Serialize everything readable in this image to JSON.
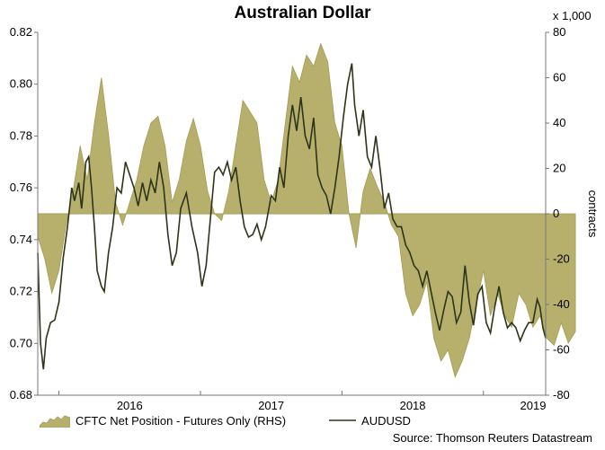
{
  "chart_data": {
    "type": "line",
    "title": "Australian Dollar",
    "source": "Source: Thomson Reuters Datastream",
    "x_tick_labels": [
      "2016",
      "2017",
      "2018",
      "2019"
    ],
    "left_axis": {
      "ticks": [
        "0.68",
        "0.70",
        "0.72",
        "0.74",
        "0.76",
        "0.78",
        "0.80",
        "0.82"
      ],
      "ylim": [
        0.68,
        0.82
      ]
    },
    "right_axis": {
      "label": "contracts",
      "unit_label": "x 1,000",
      "ticks": [
        "-80",
        "-60",
        "-40",
        "-20",
        "0",
        "20",
        "40",
        "60",
        "80"
      ],
      "ylim": [
        -80,
        80
      ]
    },
    "colors": {
      "area_fill": "#b7b06c",
      "area_stroke": "#a39c55",
      "line": "#2d3419",
      "axis": "#777777"
    },
    "series": [
      {
        "name": "CFTC Net Position - Futures Only (RHS)",
        "kind": "area",
        "axis": "right",
        "points": [
          [
            2015.35,
            -10
          ],
          [
            2015.4,
            -20
          ],
          [
            2015.45,
            -35
          ],
          [
            2015.5,
            -25
          ],
          [
            2015.55,
            -5
          ],
          [
            2015.6,
            10
          ],
          [
            2015.65,
            30
          ],
          [
            2015.7,
            15
          ],
          [
            2015.75,
            40
          ],
          [
            2015.8,
            60
          ],
          [
            2015.85,
            35
          ],
          [
            2015.9,
            5
          ],
          [
            2015.95,
            -5
          ],
          [
            2016.0,
            5
          ],
          [
            2016.05,
            15
          ],
          [
            2016.1,
            30
          ],
          [
            2016.15,
            40
          ],
          [
            2016.2,
            43
          ],
          [
            2016.25,
            30
          ],
          [
            2016.3,
            5
          ],
          [
            2016.35,
            15
          ],
          [
            2016.4,
            32
          ],
          [
            2016.45,
            42
          ],
          [
            2016.5,
            30
          ],
          [
            2016.55,
            10
          ],
          [
            2016.6,
            0
          ],
          [
            2016.65,
            -3
          ],
          [
            2016.7,
            10
          ],
          [
            2016.75,
            30
          ],
          [
            2016.8,
            50
          ],
          [
            2016.85,
            45
          ],
          [
            2016.9,
            40
          ],
          [
            2016.95,
            15
          ],
          [
            2017.0,
            5
          ],
          [
            2017.05,
            15
          ],
          [
            2017.1,
            40
          ],
          [
            2017.15,
            65
          ],
          [
            2017.2,
            58
          ],
          [
            2017.25,
            70
          ],
          [
            2017.3,
            65
          ],
          [
            2017.35,
            75
          ],
          [
            2017.4,
            67
          ],
          [
            2017.45,
            40
          ],
          [
            2017.5,
            30
          ],
          [
            2017.55,
            0
          ],
          [
            2017.6,
            -15
          ],
          [
            2017.65,
            10
          ],
          [
            2017.7,
            20
          ],
          [
            2017.75,
            12
          ],
          [
            2017.8,
            5
          ],
          [
            2017.85,
            -5
          ],
          [
            2017.9,
            -10
          ],
          [
            2017.95,
            -35
          ],
          [
            2018.0,
            -45
          ],
          [
            2018.05,
            -40
          ],
          [
            2018.1,
            -30
          ],
          [
            2018.15,
            -55
          ],
          [
            2018.2,
            -65
          ],
          [
            2018.25,
            -60
          ],
          [
            2018.3,
            -72
          ],
          [
            2018.35,
            -65
          ],
          [
            2018.4,
            -55
          ],
          [
            2018.45,
            -40
          ],
          [
            2018.5,
            -25
          ],
          [
            2018.55,
            -45
          ],
          [
            2018.6,
            -35
          ],
          [
            2018.65,
            -45
          ],
          [
            2018.7,
            -50
          ],
          [
            2018.75,
            -35
          ],
          [
            2018.8,
            -40
          ],
          [
            2018.85,
            -50
          ],
          [
            2018.9,
            -45
          ],
          [
            2018.95,
            -55
          ],
          [
            2019.0,
            -58
          ],
          [
            2019.05,
            -48
          ],
          [
            2019.1,
            -57
          ],
          [
            2019.15,
            -52
          ]
        ]
      },
      {
        "name": "AUDUSD",
        "kind": "line",
        "axis": "left",
        "points": [
          [
            2015.35,
            0.735
          ],
          [
            2015.37,
            0.7
          ],
          [
            2015.39,
            0.69
          ],
          [
            2015.41,
            0.702
          ],
          [
            2015.44,
            0.708
          ],
          [
            2015.47,
            0.709
          ],
          [
            2015.5,
            0.716
          ],
          [
            2015.53,
            0.733
          ],
          [
            2015.56,
            0.745
          ],
          [
            2015.59,
            0.76
          ],
          [
            2015.61,
            0.755
          ],
          [
            2015.64,
            0.762
          ],
          [
            2015.66,
            0.752
          ],
          [
            2015.69,
            0.77
          ],
          [
            2015.71,
            0.772
          ],
          [
            2015.73,
            0.76
          ],
          [
            2015.75,
            0.745
          ],
          [
            2015.77,
            0.728
          ],
          [
            2015.8,
            0.722
          ],
          [
            2015.82,
            0.72
          ],
          [
            2015.85,
            0.735
          ],
          [
            2015.88,
            0.745
          ],
          [
            2015.91,
            0.76
          ],
          [
            2015.94,
            0.758
          ],
          [
            2015.97,
            0.77
          ],
          [
            2016.0,
            0.765
          ],
          [
            2016.03,
            0.76
          ],
          [
            2016.06,
            0.753
          ],
          [
            2016.09,
            0.762
          ],
          [
            2016.12,
            0.755
          ],
          [
            2016.15,
            0.763
          ],
          [
            2016.18,
            0.758
          ],
          [
            2016.21,
            0.77
          ],
          [
            2016.24,
            0.76
          ],
          [
            2016.27,
            0.742
          ],
          [
            2016.3,
            0.73
          ],
          [
            2016.33,
            0.735
          ],
          [
            2016.36,
            0.752
          ],
          [
            2016.4,
            0.758
          ],
          [
            2016.44,
            0.745
          ],
          [
            2016.48,
            0.735
          ],
          [
            2016.51,
            0.722
          ],
          [
            2016.54,
            0.73
          ],
          [
            2016.57,
            0.748
          ],
          [
            2016.6,
            0.766
          ],
          [
            2016.63,
            0.768
          ],
          [
            2016.66,
            0.765
          ],
          [
            2016.69,
            0.77
          ],
          [
            2016.72,
            0.763
          ],
          [
            2016.75,
            0.768
          ],
          [
            2016.78,
            0.755
          ],
          [
            2016.81,
            0.745
          ],
          [
            2016.84,
            0.741
          ],
          [
            2016.87,
            0.742
          ],
          [
            2016.9,
            0.746
          ],
          [
            2016.93,
            0.74
          ],
          [
            2016.96,
            0.745
          ],
          [
            2017.0,
            0.757
          ],
          [
            2017.03,
            0.755
          ],
          [
            2017.06,
            0.768
          ],
          [
            2017.09,
            0.76
          ],
          [
            2017.12,
            0.78
          ],
          [
            2017.15,
            0.792
          ],
          [
            2017.18,
            0.782
          ],
          [
            2017.21,
            0.795
          ],
          [
            2017.24,
            0.78
          ],
          [
            2017.27,
            0.775
          ],
          [
            2017.3,
            0.787
          ],
          [
            2017.33,
            0.765
          ],
          [
            2017.36,
            0.76
          ],
          [
            2017.39,
            0.757
          ],
          [
            2017.42,
            0.75
          ],
          [
            2017.45,
            0.76
          ],
          [
            2017.48,
            0.772
          ],
          [
            2017.51,
            0.787
          ],
          [
            2017.54,
            0.8
          ],
          [
            2017.57,
            0.808
          ],
          [
            2017.59,
            0.792
          ],
          [
            2017.62,
            0.78
          ],
          [
            2017.65,
            0.79
          ],
          [
            2017.68,
            0.772
          ],
          [
            2017.71,
            0.768
          ],
          [
            2017.74,
            0.78
          ],
          [
            2017.77,
            0.767
          ],
          [
            2017.8,
            0.752
          ],
          [
            2017.83,
            0.758
          ],
          [
            2017.86,
            0.748
          ],
          [
            2017.89,
            0.745
          ],
          [
            2017.92,
            0.745
          ],
          [
            2017.95,
            0.738
          ],
          [
            2017.98,
            0.735
          ],
          [
            2018.01,
            0.73
          ],
          [
            2018.04,
            0.728
          ],
          [
            2018.07,
            0.722
          ],
          [
            2018.1,
            0.728
          ],
          [
            2018.13,
            0.72
          ],
          [
            2018.16,
            0.712
          ],
          [
            2018.19,
            0.705
          ],
          [
            2018.22,
            0.713
          ],
          [
            2018.25,
            0.72
          ],
          [
            2018.28,
            0.718
          ],
          [
            2018.31,
            0.708
          ],
          [
            2018.34,
            0.712
          ],
          [
            2018.37,
            0.73
          ],
          [
            2018.4,
            0.716
          ],
          [
            2018.43,
            0.707
          ],
          [
            2018.46,
            0.719
          ],
          [
            2018.49,
            0.722
          ],
          [
            2018.52,
            0.708
          ],
          [
            2018.55,
            0.704
          ],
          [
            2018.58,
            0.714
          ],
          [
            2018.61,
            0.722
          ],
          [
            2018.64,
            0.712
          ],
          [
            2018.67,
            0.706
          ],
          [
            2018.7,
            0.708
          ],
          [
            2018.73,
            0.706
          ],
          [
            2018.76,
            0.701
          ],
          [
            2018.79,
            0.705
          ],
          [
            2018.82,
            0.708
          ],
          [
            2018.85,
            0.708
          ],
          [
            2018.88,
            0.717
          ],
          [
            2018.9,
            0.714
          ],
          [
            2018.92,
            0.706
          ],
          [
            2018.94,
            0.702
          ]
        ]
      }
    ],
    "x_domain": [
      2015.35,
      2018.94
    ],
    "x_ticks_positions": [
      2015.5,
      2016.5,
      2017.5,
      2018.5
    ],
    "x_label_positions": [
      2016.0,
      2017.0,
      2018.0,
      2019.0
    ],
    "grid": false,
    "legend_position": "bottom"
  }
}
